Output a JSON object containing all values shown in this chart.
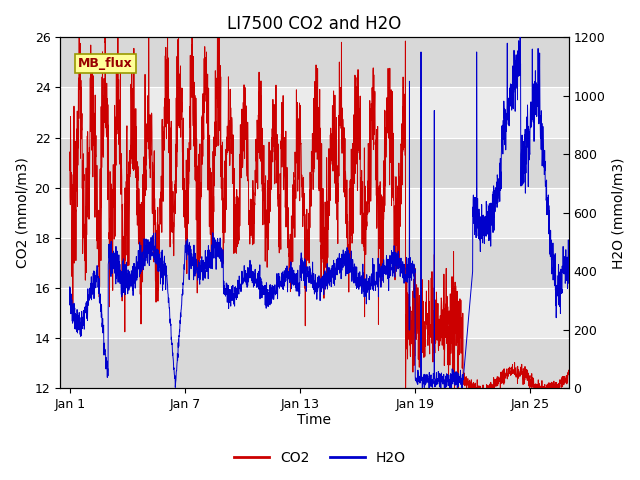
{
  "title": "LI7500 CO2 and H2O",
  "xlabel": "Time",
  "ylabel_left": "CO2 (mmol/m3)",
  "ylabel_right": "H2O (mmol/m3)",
  "xlim": [
    0.5,
    27
  ],
  "ylim_left": [
    12,
    26
  ],
  "ylim_right": [
    0,
    1200
  ],
  "x_ticks": [
    1,
    7,
    13,
    19,
    25
  ],
  "x_tick_labels": [
    "Jan 1",
    "Jan 7",
    "Jan 13",
    "Jan 19",
    "Jan 25"
  ],
  "y_ticks_left": [
    12,
    14,
    16,
    18,
    20,
    22,
    24,
    26
  ],
  "y_ticks_right": [
    0,
    200,
    400,
    600,
    800,
    1000,
    1200
  ],
  "co2_color": "#cc0000",
  "h2o_color": "#0000cc",
  "bg_color": "#ffffff",
  "plot_bg_color": "#f0f0f0",
  "annotation_text": "MB_flux",
  "annotation_bg": "#ffff99",
  "annotation_border": "#999900",
  "legend_labels": [
    "CO2",
    "H2O"
  ],
  "legend_colors": [
    "#cc0000",
    "#0000cc"
  ],
  "grid_color": "#ffffff",
  "grid_linewidth": 0.8,
  "band_color": "#e0e0e0"
}
